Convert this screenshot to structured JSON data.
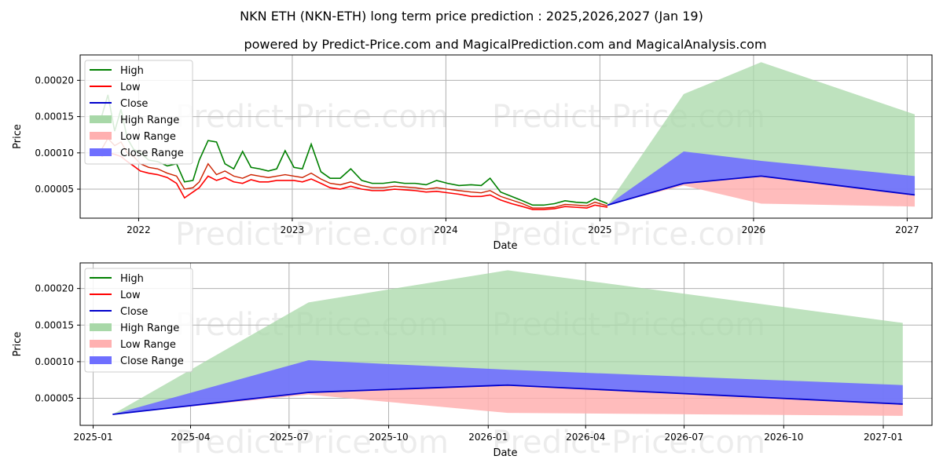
{
  "title": "NKN ETH (NKN-ETH) long term price prediction : 2025,2026,2027 (Jan 19)",
  "subtitle": "powered by Predict-Price.com and MagicalPrediction.com and MagicalAnalysis.com",
  "watermark": "Predict-Price.com",
  "colors": {
    "high": "#008000",
    "low": "#ff0000",
    "close": "#0000cc",
    "high_range": "#a8d8a8",
    "low_range": "#ffb0b0",
    "close_range": "#6f6fff"
  },
  "chart_data": [
    {
      "type": "line",
      "xlabel": "Date",
      "ylabel": "Price",
      "x_ticks": [
        "2022",
        "2023",
        "2024",
        "2025",
        "2026",
        "2027"
      ],
      "y_ticks": [
        "0.00005",
        "0.00010",
        "0.00015",
        "0.00020"
      ],
      "xlim": [
        "2021-08-15",
        "2027-03-01"
      ],
      "ylim": [
        1e-05,
        0.000235
      ],
      "grid": true,
      "legend": {
        "position": "top-left",
        "entries": [
          "High",
          "Low",
          "Close",
          "High Range",
          "Low Range",
          "Close Range"
        ]
      },
      "history": {
        "dates": [
          "2021-10-05",
          "2021-10-20",
          "2021-11-05",
          "2021-11-20",
          "2021-12-05",
          "2021-12-20",
          "2022-01-05",
          "2022-01-25",
          "2022-02-15",
          "2022-03-10",
          "2022-04-01",
          "2022-04-20",
          "2022-05-10",
          "2022-05-25",
          "2022-06-15",
          "2022-07-05",
          "2022-07-25",
          "2022-08-15",
          "2022-09-05",
          "2022-09-25",
          "2022-10-15",
          "2022-11-05",
          "2022-11-25",
          "2022-12-15",
          "2023-01-05",
          "2023-01-25",
          "2023-02-15",
          "2023-03-10",
          "2023-04-01",
          "2023-04-25",
          "2023-05-20",
          "2023-06-15",
          "2023-07-10",
          "2023-08-05",
          "2023-09-01",
          "2023-09-25",
          "2023-10-20",
          "2023-11-15",
          "2023-12-10",
          "2024-01-05",
          "2024-02-01",
          "2024-03-01",
          "2024-03-25",
          "2024-04-15",
          "2024-05-10",
          "2024-06-05",
          "2024-07-01",
          "2024-07-25",
          "2024-08-20",
          "2024-09-15",
          "2024-10-10",
          "2024-11-05",
          "2024-12-01",
          "2024-12-20",
          "2025-01-19"
        ],
        "close": [
          0.000105,
          0.00012,
          0.00011,
          0.000115,
          0.0001,
          9.5e-05,
          8.5e-05,
          8e-05,
          7.8e-05,
          7.2e-05,
          6.8e-05,
          5e-05,
          5.2e-05,
          6e-05,
          8.5e-05,
          7e-05,
          7.5e-05,
          6.8e-05,
          6.5e-05,
          7e-05,
          6.8e-05,
          6.6e-05,
          6.8e-05,
          7e-05,
          6.8e-05,
          6.6e-05,
          7.2e-05,
          6.4e-05,
          5.8e-05,
          5.6e-05,
          6e-05,
          5.5e-05,
          5.2e-05,
          5.2e-05,
          5.4e-05,
          5.3e-05,
          5.2e-05,
          5e-05,
          5.2e-05,
          5e-05,
          4.8e-05,
          4.6e-05,
          4.5e-05,
          4.8e-05,
          4e-05,
          3.5e-05,
          3e-05,
          2.4e-05,
          2.4e-05,
          2.5e-05,
          2.9e-05,
          2.8e-05,
          2.7e-05,
          3.2e-05,
          2.7e-05
        ],
        "high": [
          0.00015,
          0.00018,
          0.00013,
          0.00016,
          0.00012,
          0.000105,
          0.0001,
          9e-05,
          8.8e-05,
          8.2e-05,
          8.5e-05,
          6e-05,
          6.2e-05,
          9e-05,
          0.000117,
          0.000115,
          8.5e-05,
          7.8e-05,
          0.000102,
          8e-05,
          7.8e-05,
          7.5e-05,
          7.8e-05,
          0.000103,
          8e-05,
          7.8e-05,
          0.000112,
          7.4e-05,
          6.5e-05,
          6.5e-05,
          7.8e-05,
          6.2e-05,
          5.8e-05,
          5.8e-05,
          6e-05,
          5.8e-05,
          5.8e-05,
          5.6e-05,
          6.2e-05,
          5.8e-05,
          5.5e-05,
          5.6e-05,
          5.5e-05,
          6.5e-05,
          4.6e-05,
          4e-05,
          3.4e-05,
          2.8e-05,
          2.8e-05,
          3e-05,
          3.4e-05,
          3.2e-05,
          3.1e-05,
          3.7e-05,
          3e-05
        ],
        "low": [
          9.5e-05,
          0.0001,
          9.8e-05,
          9.5e-05,
          8.8e-05,
          8.2e-05,
          7.5e-05,
          7.2e-05,
          7e-05,
          6.6e-05,
          5.8e-05,
          3.8e-05,
          4.6e-05,
          5.2e-05,
          6.8e-05,
          6.2e-05,
          6.6e-05,
          6e-05,
          5.8e-05,
          6.3e-05,
          6e-05,
          6e-05,
          6.2e-05,
          6.2e-05,
          6.2e-05,
          6e-05,
          6.4e-05,
          5.8e-05,
          5.2e-05,
          5e-05,
          5.4e-05,
          5e-05,
          4.8e-05,
          4.8e-05,
          5e-05,
          4.9e-05,
          4.8e-05,
          4.6e-05,
          4.7e-05,
          4.5e-05,
          4.3e-05,
          4e-05,
          4e-05,
          4.2e-05,
          3.5e-05,
          3e-05,
          2.6e-05,
          2.2e-05,
          2.2e-05,
          2.3e-05,
          2.6e-05,
          2.5e-05,
          2.4e-05,
          2.8e-05,
          2.5e-05
        ]
      },
      "forecast": {
        "dates": [
          "2025-01-19",
          "2025-07-19",
          "2026-01-19",
          "2027-01-19"
        ],
        "close": [
          2.8e-05,
          5.8e-05,
          6.8e-05,
          4.2e-05
        ],
        "high_range_upper": [
          2.8e-05,
          0.000181,
          0.000225,
          0.000153
        ],
        "close_range_upper": [
          2.8e-05,
          0.000102,
          8.9e-05,
          6.8e-05
        ],
        "low_range_lower": [
          2.8e-05,
          5.5e-05,
          3e-05,
          2.6e-05
        ]
      }
    },
    {
      "type": "line",
      "xlabel": "Date",
      "ylabel": "Price",
      "x_ticks": [
        "2025-01",
        "2025-04",
        "2025-07",
        "2025-10",
        "2026-01",
        "2026-04",
        "2026-07",
        "2026-10",
        "2027-01"
      ],
      "y_ticks": [
        "0.00005",
        "0.00010",
        "0.00015",
        "0.00020"
      ],
      "xlim": [
        "2024-12-20",
        "2027-02-15"
      ],
      "ylim": [
        1.3e-05,
        0.000235
      ],
      "grid": true,
      "legend": {
        "position": "top-left",
        "entries": [
          "High",
          "Low",
          "Close",
          "High Range",
          "Low Range",
          "Close Range"
        ]
      },
      "forecast": {
        "dates": [
          "2025-01-19",
          "2025-07-19",
          "2026-01-19",
          "2027-01-19"
        ],
        "close": [
          2.8e-05,
          5.8e-05,
          6.8e-05,
          4.2e-05
        ],
        "high_range_upper": [
          2.8e-05,
          0.000181,
          0.000225,
          0.000153
        ],
        "close_range_upper": [
          2.8e-05,
          0.000102,
          8.9e-05,
          6.8e-05
        ],
        "low_range_lower": [
          2.8e-05,
          5.5e-05,
          3e-05,
          2.6e-05
        ]
      }
    }
  ]
}
